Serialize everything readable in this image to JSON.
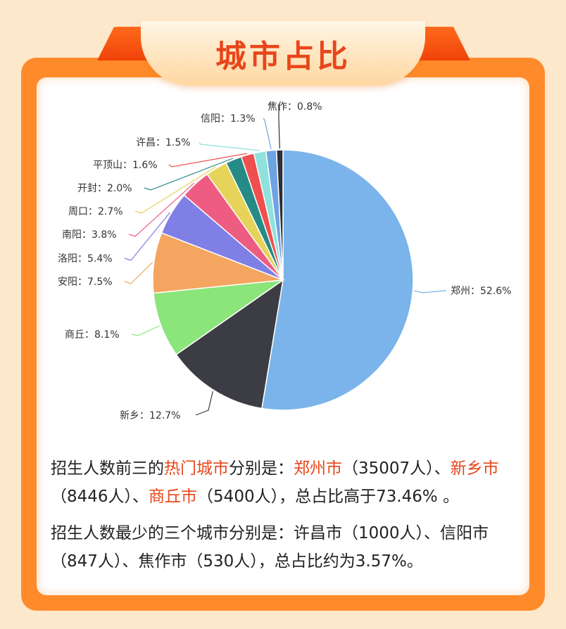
{
  "title": "城市占比",
  "chart_data": {
    "type": "pie",
    "start_angle_deg": -90,
    "slices": [
      {
        "label": "郑州",
        "value": 52.6,
        "color": "#7ab4ea",
        "text": "郑州：52.6%"
      },
      {
        "label": "新乡",
        "value": 12.7,
        "color": "#3c3c44",
        "text": "新乡：12.7%"
      },
      {
        "label": "商丘",
        "value": 8.1,
        "color": "#8be57a",
        "text": "商丘：8.1%"
      },
      {
        "label": "安阳",
        "value": 7.5,
        "color": "#f4a55f",
        "text": "安阳：7.5%"
      },
      {
        "label": "洛阳",
        "value": 5.4,
        "color": "#7f7fe6",
        "text": "洛阳：5.4%"
      },
      {
        "label": "南阳",
        "value": 3.8,
        "color": "#ee5c82",
        "text": "南阳：3.8%"
      },
      {
        "label": "周口",
        "value": 2.7,
        "color": "#e6d45a",
        "text": "周口：2.7%"
      },
      {
        "label": "开封",
        "value": 2.0,
        "color": "#268a86",
        "text": "开封：2.0%"
      },
      {
        "label": "平顶山",
        "value": 1.6,
        "color": "#ef4f4f",
        "text": "平顶山：1.6%"
      },
      {
        "label": "许昌",
        "value": 1.5,
        "color": "#8fe2dc",
        "text": "许昌：1.5%"
      },
      {
        "label": "信阳",
        "value": 1.3,
        "color": "#6ea3e2",
        "text": "信阳：1.3%"
      },
      {
        "label": "焦作",
        "value": 0.8,
        "color": "#2e2e36",
        "text": "焦作：0.8%"
      }
    ]
  },
  "desc1": {
    "p1": "招生人数前三的",
    "h1": "热门城市",
    "p2": "分别是：",
    "h2": "郑州市",
    "p3": "（35007人）、",
    "h3": "新乡市",
    "p4": "（8446人）、",
    "h4": "商丘市",
    "p5": "（5400人），总占比高于73.46% 。"
  },
  "desc2": "招生人数最少的三个城市分别是：许昌市（1000人）、信阳市（847人）、焦作市（530人），总占比约为3.57%。"
}
